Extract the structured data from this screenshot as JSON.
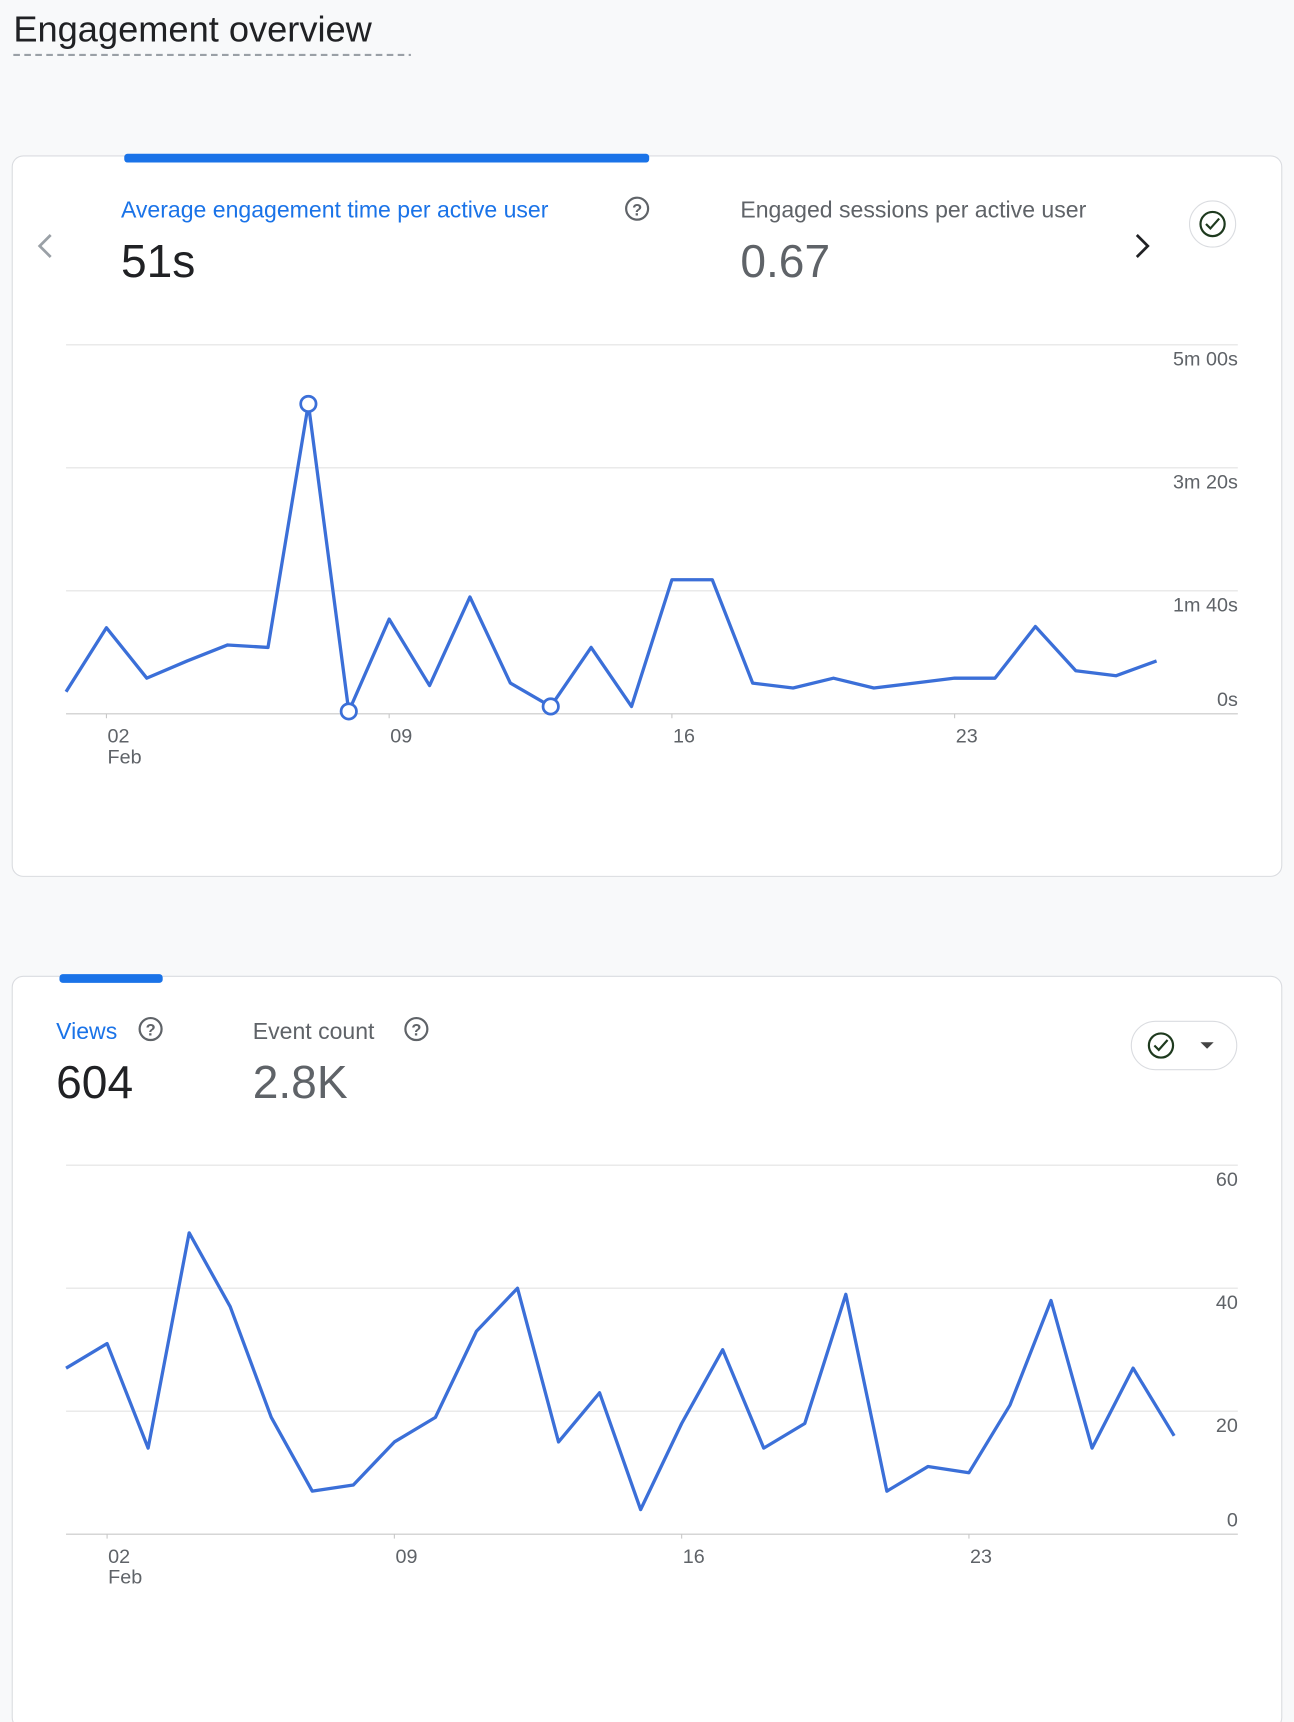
{
  "header": {
    "title": "Engagement overview"
  },
  "cards": [
    {
      "tabs": [
        {
          "name": "Average engagement time per active user",
          "value": "51s"
        },
        {
          "name": "Engaged sessions per active user",
          "value": "0.67"
        }
      ]
    },
    {
      "tabs": [
        {
          "name": "Views",
          "value": "604"
        },
        {
          "name": "Event count",
          "value": "2.8K"
        }
      ]
    }
  ],
  "chart_data": [
    {
      "type": "line",
      "x": [
        1,
        2,
        3,
        4,
        5,
        6,
        7,
        8,
        9,
        10,
        11,
        12,
        13,
        14,
        15,
        16,
        17,
        18,
        19,
        20,
        21,
        22,
        23,
        24,
        25,
        26,
        27,
        28
      ],
      "series": [
        {
          "name": "Average engagement time per active user",
          "color": "#3b6fd8",
          "values": [
            18,
            70,
            29,
            43,
            56,
            54,
            252,
            2,
            77,
            23,
            95,
            25,
            6,
            54,
            6,
            109,
            109,
            25,
            21,
            29,
            21,
            25,
            29,
            29,
            71,
            35,
            31,
            43
          ]
        }
      ],
      "marked_x": [
        7,
        8,
        13
      ],
      "xlim": [
        1,
        28
      ],
      "xticks": [
        {
          "value": 2,
          "label": "02"
        },
        {
          "value": 9,
          "label": "09"
        },
        {
          "value": 16,
          "label": "16"
        },
        {
          "value": 23,
          "label": "23"
        }
      ],
      "x_month": "Feb",
      "ylim": [
        0,
        300
      ],
      "yticks": [
        {
          "value": 0,
          "label": "0s"
        },
        {
          "value": 100,
          "label": "1m 40s"
        },
        {
          "value": 200,
          "label": "3m 20s"
        },
        {
          "value": 300,
          "label": "5m 00s"
        }
      ],
      "grid": true
    },
    {
      "type": "line",
      "x": [
        1,
        2,
        3,
        4,
        5,
        6,
        7,
        8,
        9,
        10,
        11,
        12,
        13,
        14,
        15,
        16,
        17,
        18,
        19,
        20,
        21,
        22,
        23,
        24,
        25,
        26,
        27,
        28
      ],
      "series": [
        {
          "name": "Views",
          "color": "#3b6fd8",
          "values": [
            27,
            31,
            14,
            49,
            37,
            19,
            7,
            8,
            15,
            19,
            33,
            40,
            15,
            23,
            4,
            18,
            30,
            14,
            18,
            39,
            7,
            11,
            10,
            21,
            38,
            14,
            27,
            16
          ]
        }
      ],
      "xlim": [
        1,
        28
      ],
      "xticks": [
        {
          "value": 2,
          "label": "02"
        },
        {
          "value": 9,
          "label": "09"
        },
        {
          "value": 16,
          "label": "16"
        },
        {
          "value": 23,
          "label": "23"
        }
      ],
      "x_month": "Feb",
      "ylim": [
        0,
        60
      ],
      "yticks": [
        0,
        20,
        40,
        60
      ],
      "grid": true
    }
  ]
}
